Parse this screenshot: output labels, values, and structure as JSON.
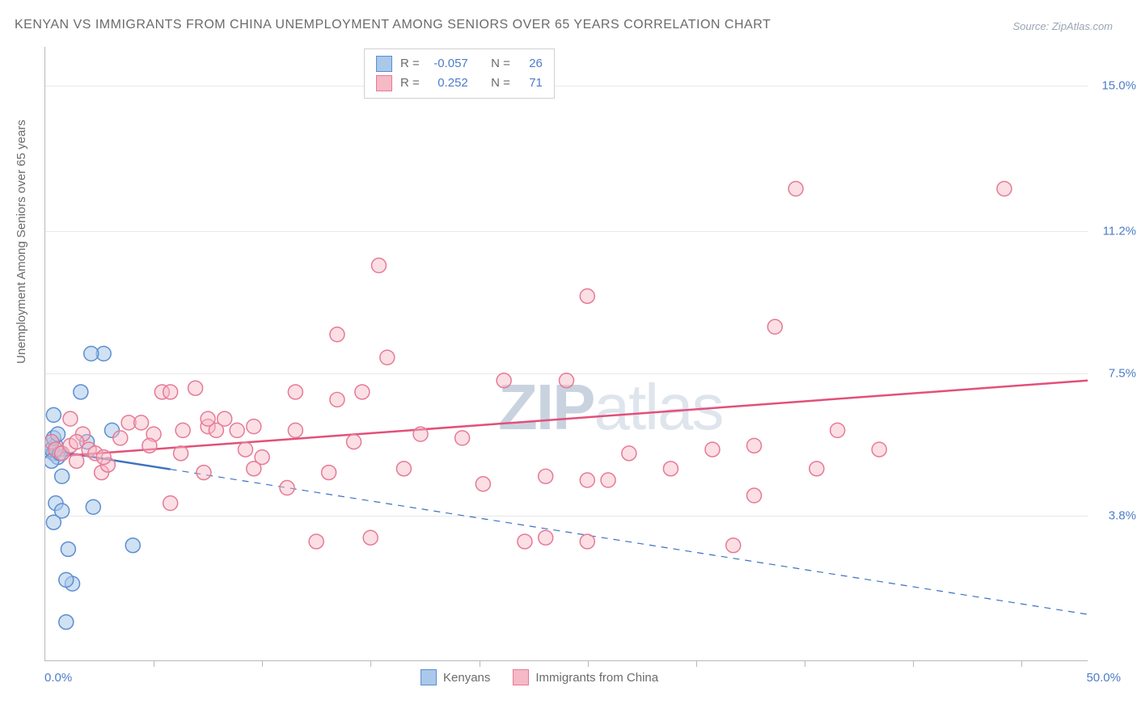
{
  "title": "KENYAN VS IMMIGRANTS FROM CHINA UNEMPLOYMENT AMONG SENIORS OVER 65 YEARS CORRELATION CHART",
  "source": "Source: ZipAtlas.com",
  "ylabel": "Unemployment Among Seniors over 65 years",
  "watermark_bold": "ZIP",
  "watermark_rest": "atlas",
  "chart": {
    "type": "scatter",
    "xlim": [
      0,
      50
    ],
    "ylim": [
      0,
      16
    ],
    "x_min_label": "0.0%",
    "x_max_label": "50.0%",
    "x_ticks": [
      5.2,
      10.4,
      15.6,
      20.8,
      26.0,
      31.2,
      36.4,
      41.6,
      46.8
    ],
    "y_ticks": [
      {
        "v": 3.8,
        "label": "3.8%"
      },
      {
        "v": 7.5,
        "label": "7.5%"
      },
      {
        "v": 11.2,
        "label": "11.2%"
      },
      {
        "v": 15.0,
        "label": "15.0%"
      }
    ],
    "grid_color": "#e8e8e8",
    "background_color": "#ffffff",
    "marker_radius": 9,
    "marker_stroke_width": 1.5,
    "trend_line_width": 2.5,
    "series": [
      {
        "name": "Kenyans",
        "fill": "#a9c8ea",
        "stroke": "#5b8ed1",
        "fill_opacity": 0.55,
        "R": "-0.057",
        "N": "26",
        "trend": {
          "x1": 0,
          "y1": 5.5,
          "x2": 50,
          "y2": 1.2,
          "solid_until_x": 6.0,
          "color": "#3d72bf"
        },
        "points": [
          [
            0.2,
            5.6
          ],
          [
            0.3,
            5.7
          ],
          [
            0.4,
            5.4
          ],
          [
            0.5,
            5.6
          ],
          [
            0.6,
            5.3
          ],
          [
            0.3,
            5.5
          ],
          [
            0.5,
            4.1
          ],
          [
            0.8,
            3.9
          ],
          [
            0.4,
            3.6
          ],
          [
            1.1,
            2.9
          ],
          [
            1.3,
            2.0
          ],
          [
            1.0,
            2.1
          ],
          [
            4.2,
            3.0
          ],
          [
            2.3,
            4.0
          ],
          [
            2.8,
            8.0
          ],
          [
            2.2,
            8.0
          ],
          [
            1.7,
            7.0
          ],
          [
            3.2,
            6.0
          ],
          [
            0.4,
            5.8
          ],
          [
            0.6,
            5.9
          ],
          [
            0.3,
            5.2
          ],
          [
            0.7,
            5.4
          ],
          [
            0.4,
            6.4
          ],
          [
            0.8,
            4.8
          ],
          [
            1.0,
            1.0
          ],
          [
            2.0,
            5.7
          ]
        ]
      },
      {
        "name": "Immigrants from China",
        "fill": "#f6b9c6",
        "stroke": "#e67a95",
        "fill_opacity": 0.45,
        "R": "0.252",
        "N": "71",
        "trend": {
          "x1": 0,
          "y1": 5.3,
          "x2": 50,
          "y2": 7.3,
          "solid_until_x": 50,
          "color": "#e2507a"
        },
        "points": [
          [
            0.3,
            5.7
          ],
          [
            0.5,
            5.5
          ],
          [
            0.8,
            5.4
          ],
          [
            1.2,
            5.6
          ],
          [
            1.5,
            5.2
          ],
          [
            1.8,
            5.9
          ],
          [
            2.1,
            5.5
          ],
          [
            2.4,
            5.4
          ],
          [
            2.7,
            4.9
          ],
          [
            3.0,
            5.1
          ],
          [
            1.2,
            6.3
          ],
          [
            3.6,
            5.8
          ],
          [
            4.0,
            6.2
          ],
          [
            4.6,
            6.2
          ],
          [
            5.2,
            5.9
          ],
          [
            5.6,
            7.0
          ],
          [
            6.0,
            7.0
          ],
          [
            7.8,
            6.1
          ],
          [
            6.0,
            4.1
          ],
          [
            6.6,
            6.0
          ],
          [
            7.2,
            7.1
          ],
          [
            7.6,
            4.9
          ],
          [
            8.2,
            6.0
          ],
          [
            8.6,
            6.3
          ],
          [
            9.2,
            6.0
          ],
          [
            9.6,
            5.5
          ],
          [
            7.8,
            6.3
          ],
          [
            10.4,
            5.3
          ],
          [
            12.0,
            6.0
          ],
          [
            11.6,
            4.5
          ],
          [
            10.0,
            5.0
          ],
          [
            12.0,
            7.0
          ],
          [
            14.0,
            8.5
          ],
          [
            13.6,
            4.9
          ],
          [
            14.8,
            5.7
          ],
          [
            15.2,
            7.0
          ],
          [
            16.0,
            10.3
          ],
          [
            14.0,
            6.8
          ],
          [
            16.4,
            7.9
          ],
          [
            17.2,
            5.0
          ],
          [
            15.6,
            3.2
          ],
          [
            13.0,
            3.1
          ],
          [
            18.0,
            5.9
          ],
          [
            20.0,
            5.8
          ],
          [
            21.0,
            4.6
          ],
          [
            22.0,
            7.3
          ],
          [
            23.0,
            3.1
          ],
          [
            24.0,
            4.8
          ],
          [
            24.0,
            3.2
          ],
          [
            25.0,
            7.3
          ],
          [
            26.0,
            4.7
          ],
          [
            27.0,
            4.7
          ],
          [
            26.0,
            3.1
          ],
          [
            26.0,
            9.5
          ],
          [
            28.0,
            5.4
          ],
          [
            30.0,
            5.0
          ],
          [
            32.0,
            5.5
          ],
          [
            34.0,
            4.3
          ],
          [
            33.0,
            3.0
          ],
          [
            35.0,
            8.7
          ],
          [
            36.0,
            12.3
          ],
          [
            34.0,
            5.6
          ],
          [
            37.0,
            5.0
          ],
          [
            38.0,
            6.0
          ],
          [
            46.0,
            12.3
          ],
          [
            40.0,
            5.5
          ],
          [
            1.5,
            5.7
          ],
          [
            2.8,
            5.3
          ],
          [
            5.0,
            5.6
          ],
          [
            6.5,
            5.4
          ],
          [
            10.0,
            6.1
          ]
        ]
      }
    ]
  },
  "legend_bottom": [
    {
      "label": "Kenyans",
      "fill": "#a9c8ea",
      "stroke": "#5b8ed1"
    },
    {
      "label": "Immigrants from China",
      "fill": "#f6b9c6",
      "stroke": "#e67a95"
    }
  ]
}
